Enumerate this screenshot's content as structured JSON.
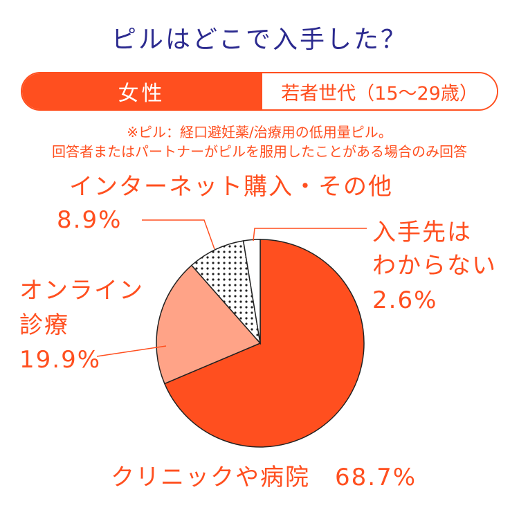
{
  "title": "ピルはどこで入手した？",
  "tabs": {
    "active_label": "女性",
    "inactive_label": "若者世代（15〜29歳）"
  },
  "notes": [
    "※ピル：経口避妊薬/治療用の低用量ピル。",
    "回答者またはパートナーがピルを服用したことがある場合のみ回答"
  ],
  "colors": {
    "accent": "#ff4f1f",
    "title": "#2b2a8f",
    "light_orange": "#ffa387",
    "white": "#ffffff"
  },
  "chart_data": {
    "type": "pie",
    "slices": [
      {
        "label": "クリニックや病院",
        "value": 68.7,
        "value_label": "68.7%",
        "fill": "solid-orange"
      },
      {
        "label": "オンライン診療",
        "value": 19.9,
        "value_label": "19.9%",
        "fill": "light-orange"
      },
      {
        "label": "インターネット購入・その他",
        "value": 8.9,
        "value_label": "8.9%",
        "fill": "dotted"
      },
      {
        "label": "入手先はわからない",
        "value": 2.6,
        "value_label": "2.6%",
        "fill": "white"
      }
    ]
  }
}
